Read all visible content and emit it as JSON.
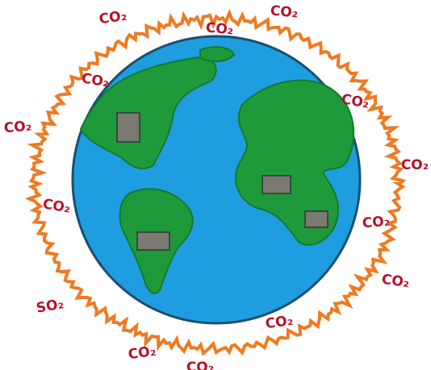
{
  "labels": [
    "CO₂",
    "CO₂",
    "CO₂",
    "CO₂",
    "CO₂",
    "CO₂",
    "CO₂",
    "CO₂",
    "CO₂",
    "CO₂",
    "SO₂",
    "CO₂",
    "CO₂",
    "CO₂"
  ]
}
